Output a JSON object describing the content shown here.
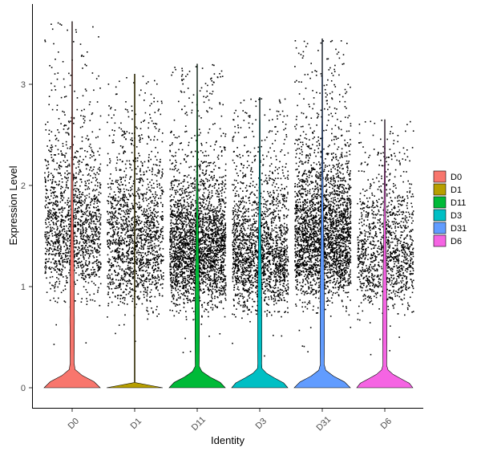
{
  "chart_data": {
    "type": "violin",
    "xlabel": "Identity",
    "ylabel": "Expression Level",
    "ylim": [
      -0.2,
      3.75
    ],
    "yticks": [
      0,
      1,
      2,
      3
    ],
    "grid": false,
    "legend_position": "right",
    "categories": [
      "D0",
      "D1",
      "D11",
      "D3",
      "D31",
      "D6"
    ],
    "colors": {
      "D0": "#f8766d",
      "D1": "#b79f00",
      "D11": "#00ba38",
      "D3": "#00bfc4",
      "D31": "#619cff",
      "D6": "#f564e3"
    },
    "series": [
      {
        "name": "D0",
        "max": 3.62,
        "peak_density_at": 0.03,
        "point_count": 1500,
        "point_range": [
          0.35,
          2.6
        ]
      },
      {
        "name": "D1",
        "max": 3.1,
        "peak_density_at": 0.0,
        "point_count": 1600,
        "point_range": [
          0.3,
          2.45
        ]
      },
      {
        "name": "D11",
        "max": 3.2,
        "peak_density_at": 0.05,
        "point_count": 2600,
        "point_range": [
          0.3,
          2.3
        ]
      },
      {
        "name": "D3",
        "max": 2.87,
        "peak_density_at": 0.04,
        "point_count": 1900,
        "point_range": [
          0.3,
          2.2
        ]
      },
      {
        "name": "D31",
        "max": 3.45,
        "peak_density_at": 0.04,
        "point_count": 2700,
        "point_range": [
          0.35,
          2.45
        ]
      },
      {
        "name": "D6",
        "max": 2.65,
        "peak_density_at": 0.04,
        "point_count": 1200,
        "point_range": [
          0.3,
          2.2
        ]
      }
    ]
  }
}
